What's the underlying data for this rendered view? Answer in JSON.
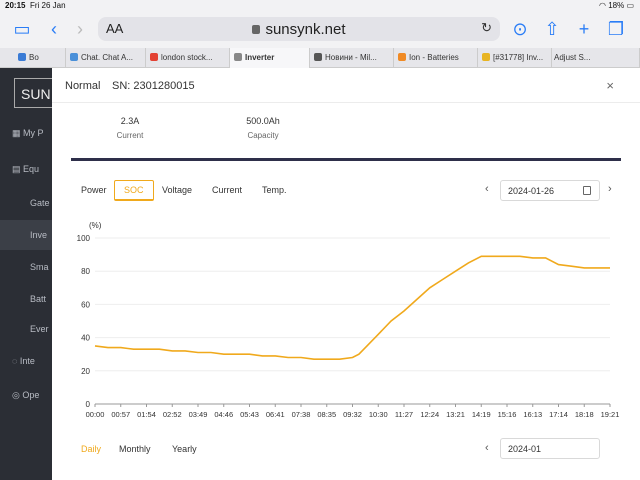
{
  "status_bar": {
    "time": "20:15",
    "date": "Fri 26 Jan",
    "battery": "18%"
  },
  "browser": {
    "aa_label": "AA",
    "url": "sunsynk.net",
    "tabs": [
      {
        "label": "Bo",
        "color": "#3a7bd5"
      },
      {
        "label": "Chat. Chat A...",
        "color": "#4a90d9"
      },
      {
        "label": "london stock...",
        "color": "#e34133"
      },
      {
        "label": "Inverter",
        "color": "#888888"
      },
      {
        "label": "Новини - Mil...",
        "color": "#555555"
      },
      {
        "label": "Ion - Batteries",
        "color": "#f08a24"
      },
      {
        "label": "[#31778] Inv...",
        "color": "#e8b422"
      },
      {
        "label": "Adjust S...",
        "color": "#999999"
      }
    ]
  },
  "sidebar": {
    "logo": "SUN",
    "items": [
      "My P",
      "Equ",
      "Gate",
      "Inve",
      "Sma",
      "Batt",
      "Ever",
      "Inte",
      "Ope"
    ]
  },
  "modal": {
    "title": "Normal",
    "serial": "SN: 2301280015",
    "close": "×",
    "stats": [
      {
        "value": "2.3A",
        "label": "Current"
      },
      {
        "value": "500.0Ah",
        "label": "Capacity"
      }
    ],
    "metric_tabs": [
      "Power",
      "SOC",
      "Voltage",
      "Current",
      "Temp."
    ],
    "active_metric": "SOC",
    "date": "2024-01-26",
    "prev": "‹",
    "next": "›",
    "period_tabs": [
      "Daily",
      "Monthly",
      "Yearly"
    ],
    "active_period": "Daily",
    "date_bottom": "2024-01"
  },
  "chart_data": {
    "type": "line",
    "ylabel": "(%)",
    "ylim": [
      0,
      100
    ],
    "yticks": [
      0,
      20,
      40,
      60,
      80,
      100
    ],
    "color": "#f0a91c",
    "x_labels": [
      "00:00",
      "00:57",
      "01:54",
      "02:52",
      "03:49",
      "04:46",
      "05:43",
      "06:41",
      "07:38",
      "08:35",
      "09:32",
      "10:30",
      "11:27",
      "12:24",
      "13:21",
      "14:19",
      "15:16",
      "16:13",
      "17:14",
      "18:18",
      "19:21"
    ],
    "x": [
      0,
      0.5,
      1.0,
      1.5,
      2.0,
      2.5,
      3.0,
      3.5,
      4.0,
      4.5,
      5.0,
      5.5,
      6.0,
      6.5,
      7.0,
      7.5,
      8.0,
      8.5,
      9.0,
      9.5,
      10.0,
      10.25,
      10.5,
      11.0,
      11.5,
      12.0,
      12.5,
      13.0,
      13.5,
      14.0,
      14.5,
      15.0,
      15.5,
      16.0,
      16.5,
      17.0,
      17.5,
      18.0,
      18.5,
      19.0,
      19.5,
      20.0
    ],
    "values": [
      35,
      34,
      34,
      33,
      33,
      33,
      32,
      32,
      31,
      31,
      30,
      30,
      30,
      29,
      29,
      28,
      28,
      27,
      27,
      27,
      28,
      30,
      34,
      42,
      50,
      56,
      63,
      70,
      75,
      80,
      85,
      89,
      89,
      89,
      89,
      88,
      88,
      84,
      83,
      82,
      82,
      82
    ]
  }
}
